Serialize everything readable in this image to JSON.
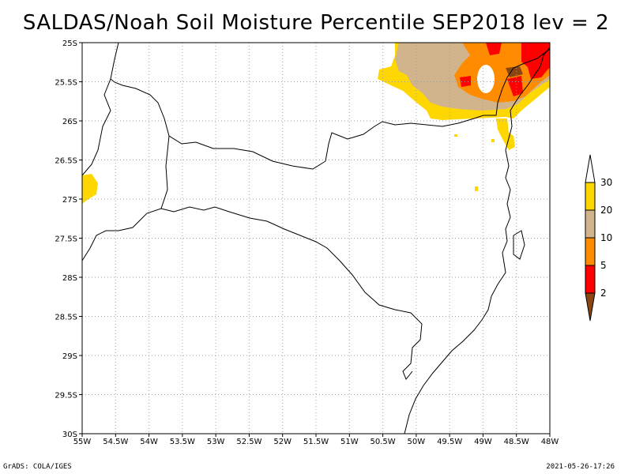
{
  "title": "SALDAS/Noah Soil Moisture Percentile SEP2018 lev = 2",
  "footer": {
    "left": "GrADS: COLA/IGES",
    "right": "2021-05-26-17:26"
  },
  "axes": {
    "x_ticks": [
      "55W",
      "54.5W",
      "54W",
      "53.5W",
      "53W",
      "52.5W",
      "52W",
      "51.5W",
      "51W",
      "50.5W",
      "50W",
      "49.5W",
      "49W",
      "48.5W",
      "48W"
    ],
    "y_ticks": [
      "25S",
      "25.5S",
      "26S",
      "26.5S",
      "27S",
      "27.5S",
      "28S",
      "28.5S",
      "29S",
      "29.5S",
      "30S"
    ]
  },
  "colorbar": {
    "labels": [
      "30",
      "20",
      "10",
      "5",
      "2"
    ],
    "colors": [
      "#ffffff",
      "#ffd700",
      "#d2b48c",
      "#ff8c00",
      "#ff0000",
      "#8b4513"
    ]
  }
}
